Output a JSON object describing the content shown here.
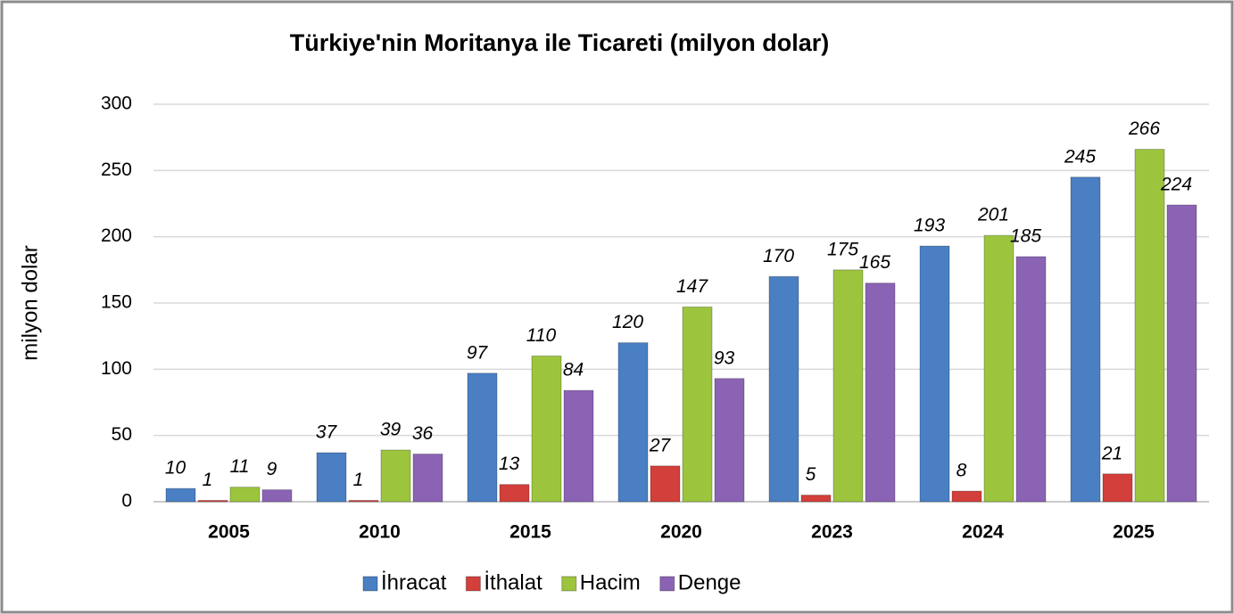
{
  "chart_data": {
    "type": "bar",
    "title": "Türkiye'nin Moritanya ile Ticareti (milyon dolar)",
    "ylabel": "milyon dolar",
    "categories": [
      "2005",
      "2010",
      "2015",
      "2020",
      "2023",
      "2024",
      "2025"
    ],
    "series": [
      {
        "name": "İhracat",
        "color": "#4a7fc4",
        "values": [
          10,
          37,
          97,
          120,
          170,
          193,
          245
        ]
      },
      {
        "name": "İthalat",
        "color": "#d33f3a",
        "values": [
          1,
          1,
          13,
          27,
          5,
          8,
          21
        ]
      },
      {
        "name": "Hacim",
        "color": "#9cc53d",
        "values": [
          11,
          39,
          110,
          147,
          175,
          201,
          266
        ]
      },
      {
        "name": "Denge",
        "color": "#8b63b5",
        "values": [
          9,
          36,
          84,
          93,
          165,
          185,
          224
        ]
      }
    ],
    "ylim": [
      0,
      300
    ],
    "yticks": [
      0,
      50,
      100,
      150,
      200,
      250,
      300
    ],
    "grid": true,
    "legend": "bottom"
  }
}
